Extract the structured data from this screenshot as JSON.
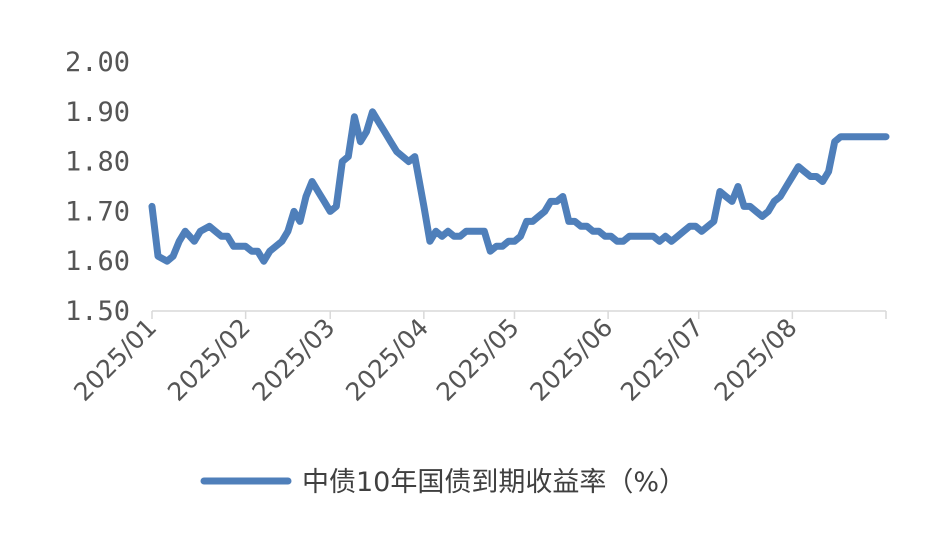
{
  "chart_data": {
    "type": "line",
    "title": "",
    "xlabel": "",
    "ylabel": "",
    "ylim": [
      1.5,
      2.0
    ],
    "yticks": [
      "1.50",
      "1.60",
      "1.70",
      "1.80",
      "1.90",
      "2.00"
    ],
    "xticks": [
      "2025/01",
      "2025/02",
      "2025/03",
      "2025/04",
      "2025/05",
      "2025/06",
      "2025/07",
      "2025/08"
    ],
    "grid": false,
    "legend_position": "bottom",
    "series": [
      {
        "name": "中债10年国债到期收益率（%）",
        "color": "#4f7fba",
        "x": [
          "2025-01-01",
          "2025-01-03",
          "2025-01-06",
          "2025-01-08",
          "2025-01-10",
          "2025-01-12",
          "2025-01-15",
          "2025-01-17",
          "2025-01-20",
          "2025-01-22",
          "2025-01-24",
          "2025-01-26",
          "2025-01-28",
          "2025-01-30",
          "2025-02-01",
          "2025-02-03",
          "2025-02-05",
          "2025-02-07",
          "2025-02-09",
          "2025-02-11",
          "2025-02-13",
          "2025-02-15",
          "2025-02-17",
          "2025-02-19",
          "2025-02-21",
          "2025-02-23",
          "2025-02-25",
          "2025-02-27",
          "2025-03-01",
          "2025-03-03",
          "2025-03-05",
          "2025-03-07",
          "2025-03-09",
          "2025-03-11",
          "2025-03-13",
          "2025-03-15",
          "2025-03-17",
          "2025-03-19",
          "2025-03-21",
          "2025-03-23",
          "2025-03-25",
          "2025-03-27",
          "2025-03-29",
          "2025-04-01",
          "2025-04-03",
          "2025-04-05",
          "2025-04-07",
          "2025-04-09",
          "2025-04-11",
          "2025-04-13",
          "2025-04-15",
          "2025-04-17",
          "2025-04-19",
          "2025-04-21",
          "2025-04-23",
          "2025-04-25",
          "2025-04-27",
          "2025-04-29",
          "2025-05-01",
          "2025-05-03",
          "2025-05-05",
          "2025-05-07",
          "2025-05-09",
          "2025-05-11",
          "2025-05-13",
          "2025-05-15",
          "2025-05-17",
          "2025-05-19",
          "2025-05-21",
          "2025-05-23",
          "2025-05-25",
          "2025-05-27",
          "2025-05-29",
          "2025-05-31",
          "2025-06-02",
          "2025-06-04",
          "2025-06-06",
          "2025-06-08",
          "2025-06-10",
          "2025-06-12",
          "2025-06-14",
          "2025-06-16",
          "2025-06-18",
          "2025-06-20",
          "2025-06-22",
          "2025-06-24",
          "2025-06-26",
          "2025-06-28",
          "2025-06-30",
          "2025-07-02",
          "2025-07-04",
          "2025-07-06",
          "2025-07-08",
          "2025-07-10",
          "2025-07-12",
          "2025-07-14",
          "2025-07-16",
          "2025-07-18",
          "2025-07-20",
          "2025-07-22",
          "2025-07-24",
          "2025-07-26",
          "2025-07-28",
          "2025-07-30",
          "2025-08-01",
          "2025-08-03",
          "2025-08-05",
          "2025-08-07",
          "2025-08-09",
          "2025-08-11",
          "2025-08-13",
          "2025-08-15",
          "2025-08-17",
          "2025-08-19",
          "2025-08-21",
          "2025-08-23",
          "2025-08-25",
          "2025-08-27",
          "2025-08-29",
          "2025-08-31",
          "2025-09-01"
        ],
        "values": [
          1.71,
          1.61,
          1.6,
          1.61,
          1.64,
          1.66,
          1.64,
          1.66,
          1.67,
          1.66,
          1.65,
          1.65,
          1.63,
          1.63,
          1.63,
          1.62,
          1.62,
          1.6,
          1.62,
          1.63,
          1.64,
          1.66,
          1.7,
          1.68,
          1.73,
          1.76,
          1.74,
          1.72,
          1.7,
          1.71,
          1.8,
          1.81,
          1.89,
          1.84,
          1.86,
          1.9,
          1.88,
          1.86,
          1.84,
          1.82,
          1.81,
          1.8,
          1.81,
          1.71,
          1.64,
          1.66,
          1.65,
          1.66,
          1.65,
          1.65,
          1.66,
          1.66,
          1.66,
          1.66,
          1.62,
          1.63,
          1.63,
          1.64,
          1.64,
          1.65,
          1.68,
          1.68,
          1.69,
          1.7,
          1.72,
          1.72,
          1.73,
          1.68,
          1.68,
          1.67,
          1.67,
          1.66,
          1.66,
          1.65,
          1.65,
          1.64,
          1.64,
          1.65,
          1.65,
          1.65,
          1.65,
          1.65,
          1.64,
          1.65,
          1.64,
          1.65,
          1.66,
          1.67,
          1.67,
          1.66,
          1.67,
          1.68,
          1.74,
          1.73,
          1.72,
          1.75,
          1.71,
          1.71,
          1.7,
          1.69,
          1.7,
          1.72,
          1.73,
          1.75,
          1.77,
          1.79,
          1.78,
          1.77,
          1.77,
          1.76,
          1.78,
          1.84,
          1.85,
          1.85,
          1.85,
          1.85,
          1.85,
          1.85,
          1.85,
          1.85,
          1.85
        ]
      }
    ]
  }
}
